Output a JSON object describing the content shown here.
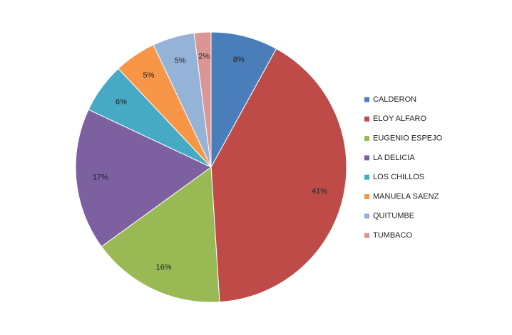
{
  "chart_data": {
    "type": "pie",
    "categories": [
      "CALDERON",
      "ELOY ALFARO",
      "EUGENIO ESPEJO",
      "LA DELICIA",
      "LOS CHILLOS",
      "MANUELA SAENZ",
      "QUITUMBE",
      "TUMBACO"
    ],
    "values": [
      8,
      41,
      16,
      17,
      6,
      5,
      5,
      2
    ],
    "value_labels": [
      "8%",
      "41%",
      "16%",
      "17%",
      "6%",
      "5%",
      "5%",
      "2%"
    ],
    "colors": [
      "#4a7ebb",
      "#be4b48",
      "#98b954",
      "#7d60a0",
      "#46aac5",
      "#f79646",
      "#95b3d7",
      "#d99694"
    ],
    "legend": "right"
  }
}
